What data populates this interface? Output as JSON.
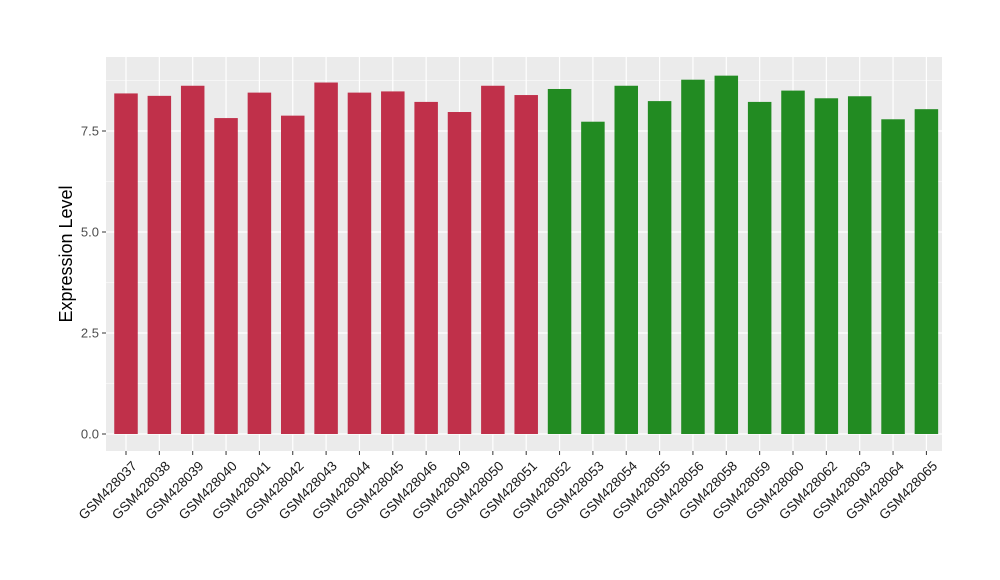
{
  "chart_data": {
    "type": "bar",
    "title": "",
    "xlabel": "",
    "ylabel": "Expression Level",
    "ylim": [
      0,
      9.0
    ],
    "yticks": [
      0.0,
      2.5,
      5.0,
      7.5
    ],
    "ytick_labels": [
      "0.0",
      "2.5",
      "5.0",
      "7.5"
    ],
    "grid": true,
    "legend": "none",
    "panel_color": "#ebebeb",
    "grid_color": "#ffffff",
    "categories": [
      "GSM428037",
      "GSM428038",
      "GSM428039",
      "GSM428040",
      "GSM428041",
      "GSM428042",
      "GSM428043",
      "GSM428044",
      "GSM428045",
      "GSM428046",
      "GSM428049",
      "GSM428050",
      "GSM428051",
      "GSM428052",
      "GSM428053",
      "GSM428054",
      "GSM428055",
      "GSM428056",
      "GSM428058",
      "GSM428059",
      "GSM428060",
      "GSM428062",
      "GSM428063",
      "GSM428064",
      "GSM428065"
    ],
    "values": [
      8.43,
      8.37,
      8.62,
      7.82,
      8.45,
      7.88,
      8.7,
      8.45,
      8.48,
      8.22,
      7.97,
      8.62,
      8.39,
      8.54,
      7.73,
      8.62,
      8.24,
      8.77,
      8.87,
      8.22,
      8.5,
      8.31,
      8.36,
      7.79,
      8.04
    ],
    "colors": [
      "#c0304a",
      "#c0304a",
      "#c0304a",
      "#c0304a",
      "#c0304a",
      "#c0304a",
      "#c0304a",
      "#c0304a",
      "#c0304a",
      "#c0304a",
      "#c0304a",
      "#c0304a",
      "#c0304a",
      "#228b22",
      "#228b22",
      "#228b22",
      "#228b22",
      "#228b22",
      "#228b22",
      "#228b22",
      "#228b22",
      "#228b22",
      "#228b22",
      "#228b22",
      "#228b22"
    ]
  }
}
